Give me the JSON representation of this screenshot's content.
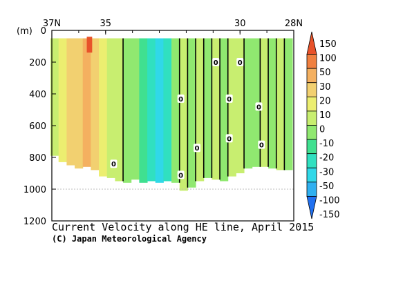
{
  "chart_data": {
    "type": "heatmap",
    "title": "Current Velocity along HE line, April 2015",
    "credit": "(C) Japan Meteorological Agency",
    "x_axis": {
      "tick_labels": [
        "37N",
        "35",
        "30",
        "28N"
      ],
      "tick_values": [
        37,
        35,
        30,
        28
      ],
      "range": [
        37,
        28
      ]
    },
    "y_axis": {
      "unit_label": "(m)",
      "tick_labels": [
        "0",
        "200",
        "400",
        "600",
        "800",
        "1000",
        "1200"
      ],
      "tick_values": [
        0,
        200,
        400,
        600,
        800,
        1000,
        1200
      ],
      "range": [
        0,
        1200
      ],
      "inverted": true
    },
    "colorbar": {
      "levels": [
        "150",
        "100",
        "50",
        "30",
        "20",
        "10",
        "0",
        "-10",
        "-20",
        "-30",
        "-50",
        "-100",
        "-150"
      ],
      "colors": [
        "#e8522a",
        "#f08040",
        "#f4b060",
        "#f2d070",
        "#ecee70",
        "#c8ee70",
        "#90e870",
        "#40e090",
        "#30e0c0",
        "#30d8e8",
        "#30b0f0",
        "#2070f0"
      ]
    },
    "contour_labels": [
      "0",
      "0",
      "0",
      "0",
      "0",
      "0",
      "0",
      "0",
      "0",
      "0"
    ],
    "columns": [
      {
        "lat": 36.9,
        "depth": 790,
        "value": 10
      },
      {
        "lat": 36.6,
        "depth": 830,
        "value": 15
      },
      {
        "lat": 36.3,
        "depth": 850,
        "value": 22
      },
      {
        "lat": 36.0,
        "depth": 870,
        "value": 28
      },
      {
        "lat": 35.7,
        "depth": 860,
        "value": 35
      },
      {
        "lat": 35.4,
        "depth": 880,
        "value": 30
      },
      {
        "lat": 35.1,
        "depth": 920,
        "value": 20
      },
      {
        "lat": 34.8,
        "depth": 930,
        "value": 10
      },
      {
        "lat": 34.5,
        "depth": 950,
        "value": 3
      },
      {
        "lat": 34.2,
        "depth": 960,
        "value": -2
      },
      {
        "lat": 33.9,
        "depth": 940,
        "value": -8
      },
      {
        "lat": 33.6,
        "depth": 960,
        "value": -18
      },
      {
        "lat": 33.3,
        "depth": 950,
        "value": -28
      },
      {
        "lat": 33.0,
        "depth": 960,
        "value": -30
      },
      {
        "lat": 32.7,
        "depth": 950,
        "value": -20
      },
      {
        "lat": 32.4,
        "depth": 960,
        "value": -5
      },
      {
        "lat": 32.1,
        "depth": 1010,
        "value": 4
      },
      {
        "lat": 31.8,
        "depth": 990,
        "value": -6
      },
      {
        "lat": 31.5,
        "depth": 950,
        "value": 2
      },
      {
        "lat": 31.2,
        "depth": 930,
        "value": -4
      },
      {
        "lat": 30.9,
        "depth": 940,
        "value": 5
      },
      {
        "lat": 30.6,
        "depth": 950,
        "value": -3
      },
      {
        "lat": 30.3,
        "depth": 920,
        "value": 2
      },
      {
        "lat": 30.0,
        "depth": 900,
        "value": 5
      },
      {
        "lat": 29.7,
        "depth": 870,
        "value": -4
      },
      {
        "lat": 29.4,
        "depth": 860,
        "value": -8
      },
      {
        "lat": 29.1,
        "depth": 860,
        "value": 3
      },
      {
        "lat": 28.8,
        "depth": 870,
        "value": -6
      },
      {
        "lat": 28.5,
        "depth": 880,
        "value": 4
      },
      {
        "lat": 28.2,
        "depth": 880,
        "value": -3
      }
    ],
    "jet_core": {
      "lat": 35.6,
      "depth_top": 40,
      "depth_bottom": 140,
      "value": 120
    }
  }
}
